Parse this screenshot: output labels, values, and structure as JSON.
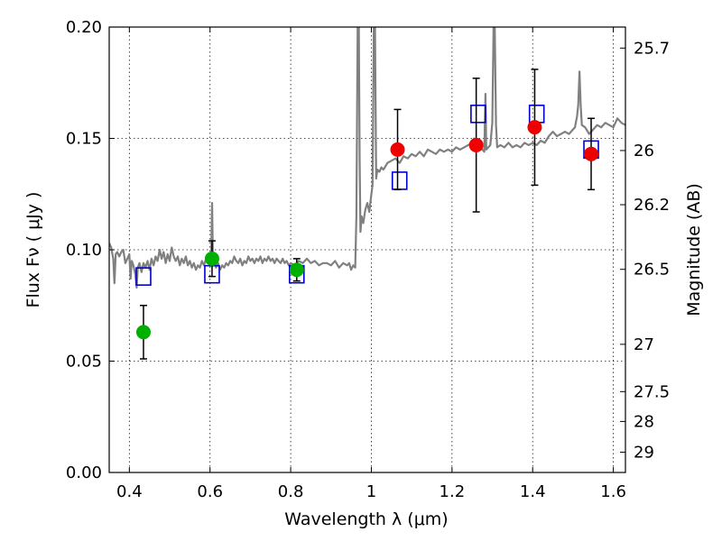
{
  "chart_data": {
    "type": "scatter",
    "xlabel": "Wavelength  λ (μm)",
    "ylabel": "Flux  Fν  ( μJy )",
    "y2label": "Magnitude (AB)",
    "xlim": [
      0.35,
      1.63
    ],
    "ylim": [
      0,
      0.2
    ],
    "grid": true,
    "x_ticks": [
      {
        "value": 0.4,
        "label": "0.4"
      },
      {
        "value": 0.6,
        "label": "0.6"
      },
      {
        "value": 0.8,
        "label": "0.8"
      },
      {
        "value": 1.0,
        "label": "1"
      },
      {
        "value": 1.2,
        "label": "1.2"
      },
      {
        "value": 1.4,
        "label": "1.4"
      },
      {
        "value": 1.6,
        "label": "1.6"
      }
    ],
    "y_ticks": [
      {
        "value": 0.0,
        "label": "0.00"
      },
      {
        "value": 0.05,
        "label": "0.05"
      },
      {
        "value": 0.1,
        "label": "0.10"
      },
      {
        "value": 0.15,
        "label": "0.15"
      },
      {
        "value": 0.2,
        "label": "0.20"
      }
    ],
    "y2_ticks": [
      {
        "value": 25.7,
        "label": "25.7"
      },
      {
        "value": 26,
        "label": "26"
      },
      {
        "value": 26.2,
        "label": "26.2"
      },
      {
        "value": 26.5,
        "label": "26.5"
      },
      {
        "value": 27,
        "label": "27"
      },
      {
        "value": 27.5,
        "label": "27.5"
      },
      {
        "value": 28,
        "label": "28"
      },
      {
        "value": 29,
        "label": "29"
      }
    ],
    "series": [
      {
        "role": "model_spectrum",
        "kind": "line",
        "color": "#808080",
        "points": [
          [
            0.35,
            0.103
          ],
          [
            0.355,
            0.101
          ],
          [
            0.36,
            0.096
          ],
          [
            0.363,
            0.085
          ],
          [
            0.366,
            0.098
          ],
          [
            0.37,
            0.099
          ],
          [
            0.375,
            0.097
          ],
          [
            0.38,
            0.099
          ],
          [
            0.385,
            0.1
          ],
          [
            0.39,
            0.094
          ],
          [
            0.395,
            0.096
          ],
          [
            0.4,
            0.098
          ],
          [
            0.403,
            0.087
          ],
          [
            0.406,
            0.095
          ],
          [
            0.41,
            0.093
          ],
          [
            0.415,
            0.089
          ],
          [
            0.418,
            0.083
          ],
          [
            0.421,
            0.092
          ],
          [
            0.425,
            0.094
          ],
          [
            0.43,
            0.09
          ],
          [
            0.435,
            0.094
          ],
          [
            0.44,
            0.092
          ],
          [
            0.445,
            0.095
          ],
          [
            0.45,
            0.091
          ],
          [
            0.455,
            0.096
          ],
          [
            0.46,
            0.093
          ],
          [
            0.465,
            0.097
          ],
          [
            0.47,
            0.095
          ],
          [
            0.475,
            0.1
          ],
          [
            0.48,
            0.096
          ],
          [
            0.485,
            0.099
          ],
          [
            0.49,
            0.094
          ],
          [
            0.495,
            0.098
          ],
          [
            0.5,
            0.095
          ],
          [
            0.505,
            0.101
          ],
          [
            0.51,
            0.097
          ],
          [
            0.515,
            0.095
          ],
          [
            0.52,
            0.097
          ],
          [
            0.525,
            0.093
          ],
          [
            0.53,
            0.096
          ],
          [
            0.535,
            0.094
          ],
          [
            0.54,
            0.097
          ],
          [
            0.545,
            0.093
          ],
          [
            0.55,
            0.095
          ],
          [
            0.555,
            0.092
          ],
          [
            0.56,
            0.094
          ],
          [
            0.565,
            0.091
          ],
          [
            0.57,
            0.093
          ],
          [
            0.575,
            0.092
          ],
          [
            0.58,
            0.095
          ],
          [
            0.585,
            0.093
          ],
          [
            0.59,
            0.096
          ],
          [
            0.595,
            0.094
          ],
          [
            0.6,
            0.097
          ],
          [
            0.603,
            0.098
          ],
          [
            0.605,
            0.121
          ],
          [
            0.607,
            0.099
          ],
          [
            0.61,
            0.095
          ],
          [
            0.615,
            0.092
          ],
          [
            0.62,
            0.094
          ],
          [
            0.625,
            0.091
          ],
          [
            0.63,
            0.093
          ],
          [
            0.635,
            0.092
          ],
          [
            0.64,
            0.094
          ],
          [
            0.645,
            0.093
          ],
          [
            0.65,
            0.095
          ],
          [
            0.655,
            0.094
          ],
          [
            0.66,
            0.097
          ],
          [
            0.665,
            0.095
          ],
          [
            0.67,
            0.094
          ],
          [
            0.675,
            0.096
          ],
          [
            0.68,
            0.093
          ],
          [
            0.685,
            0.095
          ],
          [
            0.69,
            0.094
          ],
          [
            0.695,
            0.097
          ],
          [
            0.7,
            0.095
          ],
          [
            0.705,
            0.096
          ],
          [
            0.71,
            0.094
          ],
          [
            0.715,
            0.096
          ],
          [
            0.72,
            0.095
          ],
          [
            0.725,
            0.097
          ],
          [
            0.73,
            0.094
          ],
          [
            0.735,
            0.096
          ],
          [
            0.74,
            0.095
          ],
          [
            0.745,
            0.097
          ],
          [
            0.75,
            0.095
          ],
          [
            0.755,
            0.096
          ],
          [
            0.76,
            0.094
          ],
          [
            0.765,
            0.096
          ],
          [
            0.77,
            0.095
          ],
          [
            0.775,
            0.094
          ],
          [
            0.78,
            0.096
          ],
          [
            0.785,
            0.094
          ],
          [
            0.79,
            0.095
          ],
          [
            0.795,
            0.093
          ],
          [
            0.8,
            0.094
          ],
          [
            0.81,
            0.093
          ],
          [
            0.82,
            0.095
          ],
          [
            0.83,
            0.094
          ],
          [
            0.84,
            0.096
          ],
          [
            0.85,
            0.094
          ],
          [
            0.86,
            0.095
          ],
          [
            0.87,
            0.093
          ],
          [
            0.88,
            0.094
          ],
          [
            0.89,
            0.094
          ],
          [
            0.9,
            0.093
          ],
          [
            0.91,
            0.095
          ],
          [
            0.92,
            0.092
          ],
          [
            0.93,
            0.094
          ],
          [
            0.94,
            0.093
          ],
          [
            0.945,
            0.094
          ],
          [
            0.95,
            0.091
          ],
          [
            0.955,
            0.093
          ],
          [
            0.96,
            0.092
          ],
          [
            0.963,
            0.115
          ],
          [
            0.966,
            0.2
          ],
          [
            0.969,
            0.2
          ],
          [
            0.971,
            0.14
          ],
          [
            0.973,
            0.108
          ],
          [
            0.976,
            0.115
          ],
          [
            0.98,
            0.112
          ],
          [
            0.985,
            0.118
          ],
          [
            0.99,
            0.121
          ],
          [
            0.995,
            0.117
          ],
          [
            1.0,
            0.125
          ],
          [
            1.003,
            0.129
          ],
          [
            1.006,
            0.2
          ],
          [
            1.009,
            0.2
          ],
          [
            1.012,
            0.132
          ],
          [
            1.015,
            0.136
          ],
          [
            1.02,
            0.135
          ],
          [
            1.025,
            0.137
          ],
          [
            1.03,
            0.136
          ],
          [
            1.04,
            0.139
          ],
          [
            1.05,
            0.14
          ],
          [
            1.06,
            0.141
          ],
          [
            1.07,
            0.139
          ],
          [
            1.08,
            0.142
          ],
          [
            1.09,
            0.141
          ],
          [
            1.1,
            0.143
          ],
          [
            1.11,
            0.142
          ],
          [
            1.12,
            0.144
          ],
          [
            1.13,
            0.142
          ],
          [
            1.14,
            0.145
          ],
          [
            1.15,
            0.144
          ],
          [
            1.16,
            0.143
          ],
          [
            1.17,
            0.145
          ],
          [
            1.18,
            0.144
          ],
          [
            1.19,
            0.145
          ],
          [
            1.2,
            0.144
          ],
          [
            1.21,
            0.146
          ],
          [
            1.22,
            0.145
          ],
          [
            1.23,
            0.146
          ],
          [
            1.24,
            0.147
          ],
          [
            1.25,
            0.148
          ],
          [
            1.255,
            0.15
          ],
          [
            1.26,
            0.148
          ],
          [
            1.265,
            0.147
          ],
          [
            1.27,
            0.146
          ],
          [
            1.275,
            0.145
          ],
          [
            1.28,
            0.144
          ],
          [
            1.283,
            0.17
          ],
          [
            1.285,
            0.145
          ],
          [
            1.29,
            0.146
          ],
          [
            1.295,
            0.147
          ],
          [
            1.3,
            0.157
          ],
          [
            1.303,
            0.2
          ],
          [
            1.306,
            0.2
          ],
          [
            1.309,
            0.156
          ],
          [
            1.312,
            0.146
          ],
          [
            1.32,
            0.147
          ],
          [
            1.33,
            0.146
          ],
          [
            1.34,
            0.148
          ],
          [
            1.35,
            0.146
          ],
          [
            1.36,
            0.147
          ],
          [
            1.37,
            0.146
          ],
          [
            1.38,
            0.148
          ],
          [
            1.39,
            0.147
          ],
          [
            1.4,
            0.148
          ],
          [
            1.41,
            0.147
          ],
          [
            1.42,
            0.149
          ],
          [
            1.43,
            0.148
          ],
          [
            1.44,
            0.151
          ],
          [
            1.45,
            0.153
          ],
          [
            1.46,
            0.151
          ],
          [
            1.47,
            0.152
          ],
          [
            1.48,
            0.153
          ],
          [
            1.49,
            0.152
          ],
          [
            1.5,
            0.154
          ],
          [
            1.505,
            0.155
          ],
          [
            1.51,
            0.16
          ],
          [
            1.513,
            0.165
          ],
          [
            1.516,
            0.18
          ],
          [
            1.519,
            0.165
          ],
          [
            1.522,
            0.156
          ],
          [
            1.53,
            0.155
          ],
          [
            1.54,
            0.152
          ],
          [
            1.55,
            0.154
          ],
          [
            1.56,
            0.156
          ],
          [
            1.57,
            0.155
          ],
          [
            1.58,
            0.157
          ],
          [
            1.59,
            0.156
          ],
          [
            1.6,
            0.155
          ],
          [
            1.61,
            0.159
          ],
          [
            1.62,
            0.157
          ],
          [
            1.63,
            0.156
          ]
        ]
      },
      {
        "role": "model_fluxes",
        "kind": "open_square",
        "color": "#0000cc",
        "points": [
          {
            "x": 0.435,
            "y": 0.088
          },
          {
            "x": 0.605,
            "y": 0.089
          },
          {
            "x": 0.815,
            "y": 0.089
          },
          {
            "x": 1.07,
            "y": 0.131
          },
          {
            "x": 1.265,
            "y": 0.161
          },
          {
            "x": 1.41,
            "y": 0.161
          },
          {
            "x": 1.545,
            "y": 0.145
          }
        ]
      },
      {
        "role": "observed_optical",
        "kind": "filled_circle",
        "color": "#00b000",
        "points": [
          {
            "x": 0.435,
            "y": 0.063,
            "err": 0.012
          },
          {
            "x": 0.605,
            "y": 0.096,
            "err": 0.008
          },
          {
            "x": 0.815,
            "y": 0.091,
            "err": 0.005
          }
        ]
      },
      {
        "role": "observed_nir",
        "kind": "filled_circle",
        "color": "#ee0000",
        "points": [
          {
            "x": 1.065,
            "y": 0.145,
            "err": 0.018
          },
          {
            "x": 1.26,
            "y": 0.147,
            "err": 0.03
          },
          {
            "x": 1.405,
            "y": 0.155,
            "err": 0.026
          },
          {
            "x": 1.545,
            "y": 0.143,
            "err": 0.016
          }
        ]
      }
    ]
  }
}
